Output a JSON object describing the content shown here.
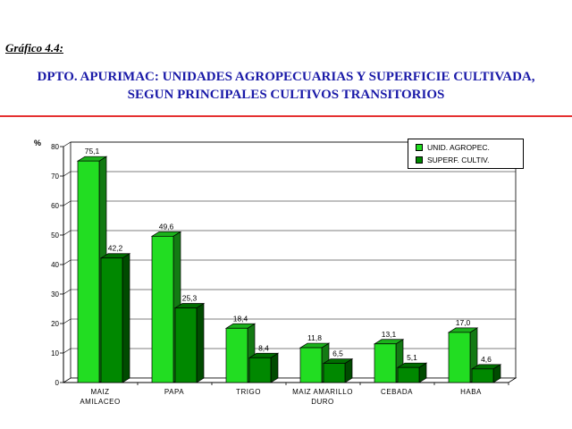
{
  "figure": {
    "label": "Gráfico 4.4:",
    "title_line1": "DPTO. APURIMAC: UNIDADES AGROPECUARIAS Y SUPERFICIE CULTIVADA,",
    "title_line2": "SEGUN PRINCIPALES CULTIVOS TRANSITORIOS"
  },
  "colors": {
    "title": "#1a1aa8",
    "rule": "#e53030",
    "series1": "#22dd22",
    "series2": "#008800"
  },
  "chart_data": {
    "type": "bar",
    "title": "",
    "ylabel": "%",
    "xlabel": "",
    "ylim": [
      0,
      80
    ],
    "yticks": [
      0,
      10,
      20,
      30,
      40,
      50,
      60,
      70,
      80
    ],
    "grid": true,
    "legend_position": "top-right",
    "categories": [
      [
        "MAIZ",
        "AMILACEO"
      ],
      [
        "PAPA"
      ],
      [
        "TRIGO"
      ],
      [
        "MAIZ AMARILLO",
        "DURO"
      ],
      [
        "CEBADA"
      ],
      [
        "HABA"
      ]
    ],
    "series": [
      {
        "name": "UNID. AGROPEC.",
        "values": [
          75.1,
          49.6,
          18.4,
          11.8,
          13.1,
          17.0
        ],
        "labels": [
          "75,1",
          "49,6",
          "18,4",
          "11,8",
          "13,1",
          "17,0"
        ]
      },
      {
        "name": "SUPERF. CULTIV.",
        "values": [
          42.2,
          25.3,
          8.4,
          6.5,
          5.1,
          4.6
        ],
        "labels": [
          "42,2",
          "25,3",
          "8,4",
          "6,5",
          "5,1",
          "4,6"
        ]
      }
    ]
  }
}
